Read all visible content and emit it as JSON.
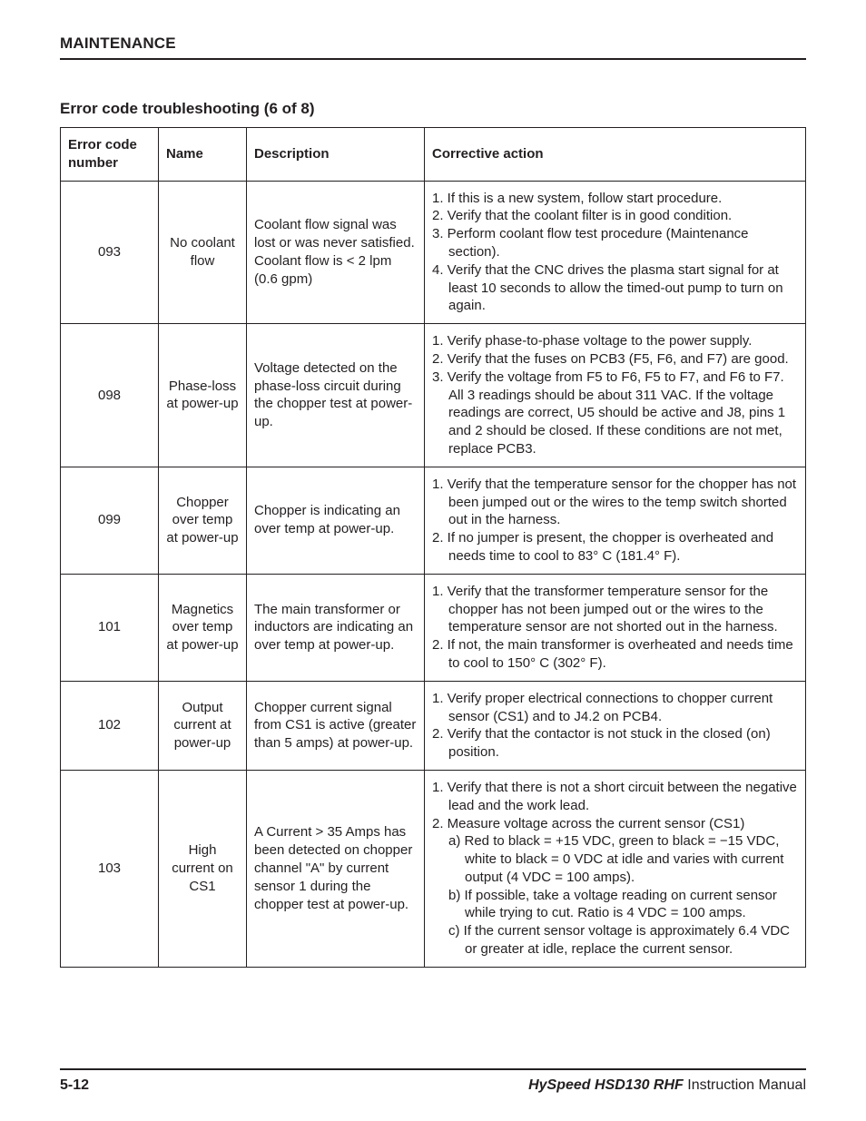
{
  "header": {
    "section": "MAINTENANCE",
    "title": "Error code troubleshooting (6 of 8)"
  },
  "table": {
    "columns": [
      "Error code number",
      "Name",
      "Description",
      "Corrective action"
    ],
    "rows": [
      {
        "code": "093",
        "name": "No coolant flow",
        "desc": "Coolant flow signal was lost or was never satisfied. Coolant flow is < 2 lpm (0.6 gpm)",
        "actions": [
          "1. If this is a new system, follow start procedure.",
          "2. Verify that the coolant filter is in good condition.",
          "3. Perform coolant flow test procedure (Maintenance section).",
          "4. Verify that the CNC drives the plasma start signal for at least 10 seconds to allow the timed-out pump to turn on again."
        ]
      },
      {
        "code": "098",
        "name": "Phase-loss at power-up",
        "desc": "Voltage detected on the phase-loss circuit during the chopper test at power-up.",
        "actions": [
          "1. Verify phase-to-phase voltage to the power supply.",
          "2. Verify that the fuses on PCB3 (F5, F6, and F7) are good.",
          "3. Verify the voltage from F5 to F6, F5 to F7, and F6 to F7. All 3 readings should be about 311 VAC. If the voltage readings are correct, U5 should be active and J8, pins 1 and 2 should be closed. If these conditions are not met, replace PCB3."
        ]
      },
      {
        "code": "099",
        "name": "Chopper over temp at power-up",
        "desc": "Chopper is indicating an over temp at power-up.",
        "actions": [
          "1. Verify that the temperature sensor for the chopper has not been jumped out or the wires to the temp switch shorted out in the harness.",
          "2. If no jumper is present, the chopper is overheated and needs time to cool to 83° C (181.4° F)."
        ]
      },
      {
        "code": "101",
        "name": "Magnetics over temp at power-up",
        "desc": "The main transformer or inductors are indicating an over temp at power-up.",
        "actions": [
          "1. Verify that the transformer temperature sensor for the chopper has not been jumped out or the wires to the temperature sensor are not shorted out in the harness.",
          "2. If not, the main transformer is overheated and needs time to cool to 150° C (302° F)."
        ]
      },
      {
        "code": "102",
        "name": "Output current at power-up",
        "desc": "Chopper current signal from CS1 is active (greater than 5 amps) at power-up.",
        "actions": [
          "1. Verify proper electrical connections to chopper current sensor (CS1) and to J4.2 on PCB4.",
          "2. Verify that the contactor is not stuck in the closed (on) position."
        ]
      },
      {
        "code": "103",
        "name": "High current on CS1",
        "desc": "A Current > 35 Amps has been detected on chopper channel \"A\" by current sensor 1 during the chopper test at power-up.",
        "actions": [
          "1. Verify that there is not a short circuit between the negative lead and the work lead.",
          "2. Measure voltage across the current sensor (CS1)"
        ],
        "subactions": [
          "a) Red to black = +15 VDC, green to black = −15 VDC, white to black = 0 VDC at idle and varies with current output (4 VDC = 100 amps).",
          "b) If possible, take a voltage reading on current sensor while trying to cut. Ratio is 4 VDC = 100 amps.",
          "c) If the current sensor voltage is approximately 6.4 VDC or greater at idle, replace the current sensor."
        ]
      }
    ]
  },
  "footer": {
    "page": "5-12",
    "product": "HySpeed HSD130 RHF",
    "doc": " Instruction Manual"
  }
}
